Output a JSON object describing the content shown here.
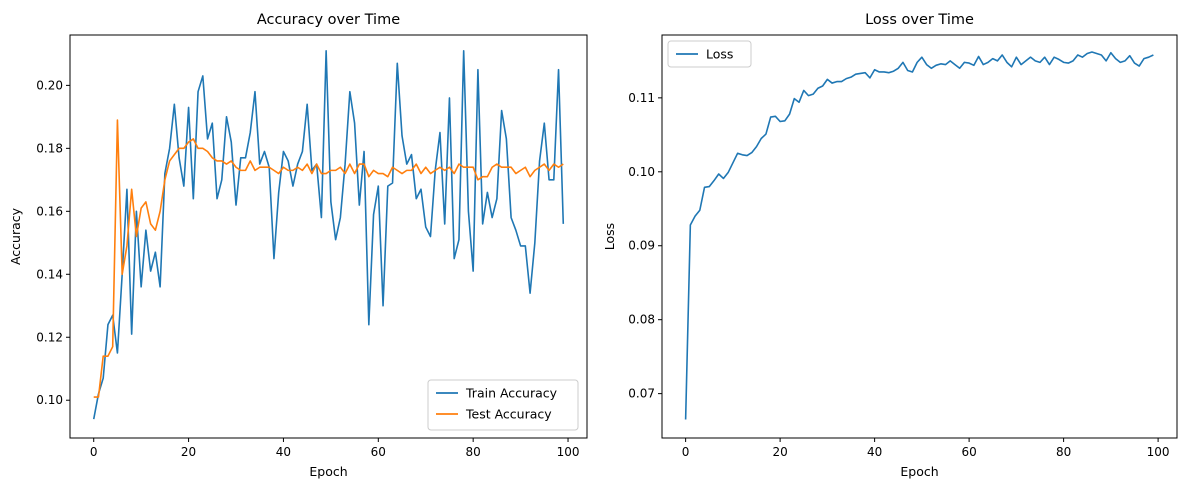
{
  "chart_data": [
    {
      "type": "line",
      "title": "Accuracy over Time",
      "xlabel": "Epoch",
      "ylabel": "Accuracy",
      "xlim": [
        -5,
        104
      ],
      "ylim": [
        0.088,
        0.216
      ],
      "xticks": [
        "0",
        "20",
        "40",
        "60",
        "80",
        "100"
      ],
      "yticks": [
        "0.10",
        "0.12",
        "0.14",
        "0.16",
        "0.18",
        "0.20"
      ],
      "legend_position": "lower-right",
      "grid": false,
      "series": [
        {
          "name": "Train Accuracy",
          "color": "#1f77b4",
          "values": [
            0.094,
            0.102,
            0.107,
            0.124,
            0.127,
            0.115,
            0.14,
            0.167,
            0.121,
            0.16,
            0.136,
            0.154,
            0.141,
            0.147,
            0.136,
            0.172,
            0.18,
            0.194,
            0.177,
            0.168,
            0.193,
            0.164,
            0.198,
            0.203,
            0.183,
            0.188,
            0.164,
            0.17,
            0.19,
            0.182,
            0.162,
            0.177,
            0.177,
            0.185,
            0.198,
            0.175,
            0.179,
            0.174,
            0.145,
            0.166,
            0.179,
            0.176,
            0.168,
            0.175,
            0.179,
            0.194,
            0.173,
            0.175,
            0.158,
            0.211,
            0.163,
            0.151,
            0.158,
            0.175,
            0.198,
            0.188,
            0.162,
            0.179,
            0.124,
            0.159,
            0.168,
            0.13,
            0.168,
            0.169,
            0.207,
            0.184,
            0.175,
            0.178,
            0.164,
            0.167,
            0.155,
            0.152,
            0.173,
            0.185,
            0.156,
            0.196,
            0.145,
            0.151,
            0.211,
            0.16,
            0.141,
            0.205,
            0.156,
            0.166,
            0.158,
            0.164,
            0.192,
            0.183,
            0.158,
            0.154,
            0.149,
            0.149,
            0.134,
            0.15,
            0.176,
            0.188,
            0.17,
            0.17,
            0.205,
            0.156
          ]
        },
        {
          "name": "Test Accuracy",
          "color": "#ff7f0e",
          "values": [
            0.101,
            0.101,
            0.114,
            0.114,
            0.117,
            0.189,
            0.14,
            0.149,
            0.167,
            0.152,
            0.161,
            0.163,
            0.156,
            0.154,
            0.16,
            0.17,
            0.176,
            0.178,
            0.18,
            0.18,
            0.182,
            0.183,
            0.18,
            0.18,
            0.179,
            0.177,
            0.176,
            0.176,
            0.175,
            0.176,
            0.174,
            0.173,
            0.173,
            0.176,
            0.173,
            0.174,
            0.174,
            0.174,
            0.173,
            0.172,
            0.174,
            0.173,
            0.173,
            0.174,
            0.173,
            0.175,
            0.172,
            0.175,
            0.172,
            0.172,
            0.173,
            0.173,
            0.174,
            0.172,
            0.175,
            0.172,
            0.175,
            0.175,
            0.171,
            0.173,
            0.172,
            0.172,
            0.171,
            0.174,
            0.173,
            0.172,
            0.173,
            0.173,
            0.175,
            0.172,
            0.174,
            0.172,
            0.173,
            0.174,
            0.173,
            0.174,
            0.172,
            0.175,
            0.174,
            0.174,
            0.174,
            0.17,
            0.171,
            0.171,
            0.174,
            0.175,
            0.174,
            0.174,
            0.174,
            0.172,
            0.173,
            0.174,
            0.171,
            0.173,
            0.174,
            0.175,
            0.173,
            0.175,
            0.174,
            0.175
          ]
        }
      ]
    },
    {
      "type": "line",
      "title": "Loss over Time",
      "xlabel": "Epoch",
      "ylabel": "Loss",
      "xlim": [
        -5,
        104
      ],
      "ylim": [
        0.064,
        0.1185
      ],
      "xticks": [
        "0",
        "20",
        "40",
        "60",
        "80",
        "100"
      ],
      "yticks": [
        "0.07",
        "0.08",
        "0.09",
        "0.10",
        "0.11"
      ],
      "legend_position": "upper-left",
      "grid": false,
      "series": [
        {
          "name": "Loss",
          "color": "#1f77b4",
          "values": [
            0.0665,
            0.0928,
            0.094,
            0.0948,
            0.0979,
            0.098,
            0.0988,
            0.0997,
            0.0991,
            0.0999,
            0.1012,
            0.1025,
            0.1023,
            0.1022,
            0.1026,
            0.1034,
            0.1045,
            0.1051,
            0.1074,
            0.1075,
            0.1068,
            0.1069,
            0.1078,
            0.1099,
            0.1094,
            0.111,
            0.1103,
            0.1105,
            0.1113,
            0.1116,
            0.1125,
            0.112,
            0.1122,
            0.1122,
            0.1126,
            0.1128,
            0.1132,
            0.1133,
            0.1134,
            0.1127,
            0.1138,
            0.1135,
            0.1135,
            0.1134,
            0.1136,
            0.114,
            0.1148,
            0.1137,
            0.1135,
            0.1148,
            0.1155,
            0.1145,
            0.114,
            0.1144,
            0.1146,
            0.1145,
            0.115,
            0.1145,
            0.114,
            0.1148,
            0.1147,
            0.1144,
            0.1156,
            0.1145,
            0.1148,
            0.1153,
            0.115,
            0.1158,
            0.1148,
            0.1142,
            0.1155,
            0.1145,
            0.115,
            0.1155,
            0.115,
            0.1148,
            0.1155,
            0.1145,
            0.1155,
            0.1152,
            0.1148,
            0.1147,
            0.115,
            0.1158,
            0.1155,
            0.116,
            0.1162,
            0.116,
            0.1158,
            0.115,
            0.1161,
            0.1153,
            0.1148,
            0.115,
            0.1157,
            0.1147,
            0.1143,
            0.1153,
            0.1155,
            0.1158
          ]
        }
      ]
    }
  ]
}
